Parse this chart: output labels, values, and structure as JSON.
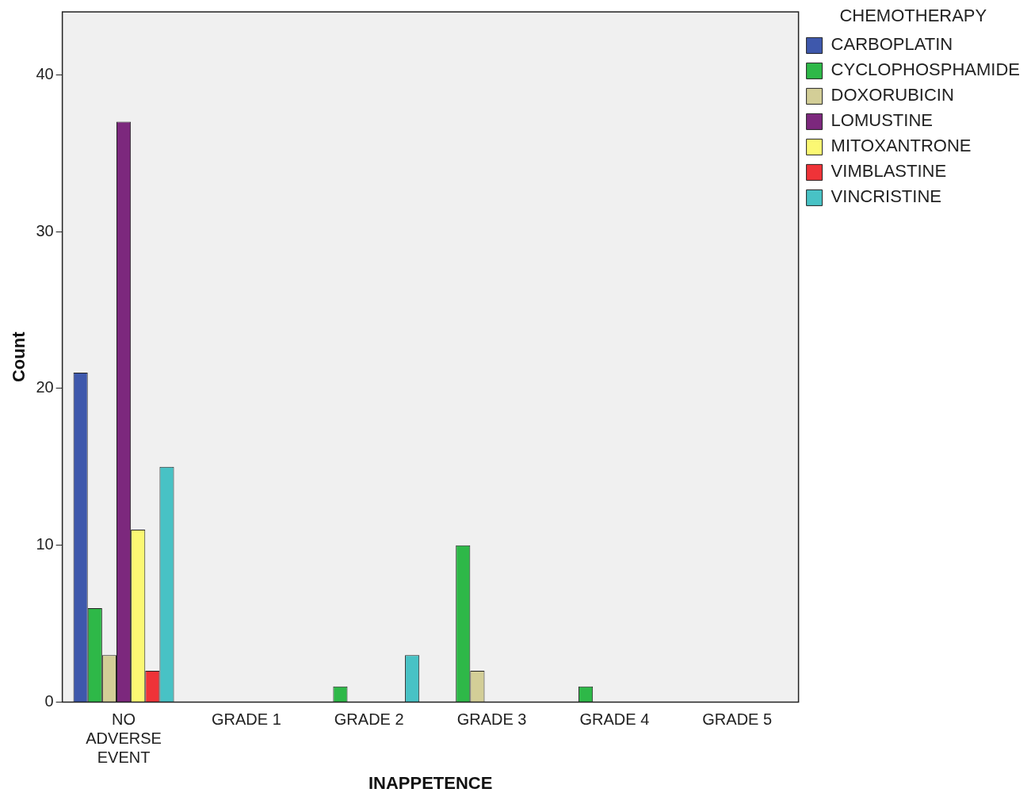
{
  "chart_data": {
    "type": "bar",
    "xlabel": "INAPPETENCE",
    "ylabel": "Count",
    "legend_title": "CHEMOTHERAPY",
    "legend": "top right",
    "categories": [
      "NO ADVERSE EVENT",
      "GRADE 1",
      "GRADE 2",
      "GRADE 3",
      "GRADE 4",
      "GRADE 5"
    ],
    "series": [
      {
        "name": "CARBOPLATIN",
        "color": "#3e58ac",
        "values": [
          21,
          null,
          null,
          null,
          null,
          null
        ]
      },
      {
        "name": "CYCLOPHOSPHAMIDE",
        "color": "#2eb848",
        "values": [
          6,
          null,
          1,
          10,
          1,
          null
        ]
      },
      {
        "name": "DOXORUBICIN",
        "color": "#d3ce97",
        "values": [
          3,
          null,
          null,
          2,
          null,
          null
        ]
      },
      {
        "name": "LOMUSTINE",
        "color": "#7c287d",
        "values": [
          37,
          null,
          null,
          null,
          null,
          null
        ]
      },
      {
        "name": "MITOXANTRONE",
        "color": "#fbf873",
        "values": [
          11,
          null,
          null,
          null,
          null,
          null
        ]
      },
      {
        "name": "VIMBLASTINE",
        "color": "#ef3338",
        "values": [
          2,
          null,
          null,
          null,
          null,
          null
        ]
      },
      {
        "name": "VINCRISTINE",
        "color": "#48c2c5",
        "values": [
          15,
          null,
          3,
          null,
          null,
          null
        ]
      }
    ],
    "ylim": [
      0,
      44
    ],
    "yticks": [
      0,
      10,
      20,
      30,
      40
    ],
    "grid": false
  }
}
